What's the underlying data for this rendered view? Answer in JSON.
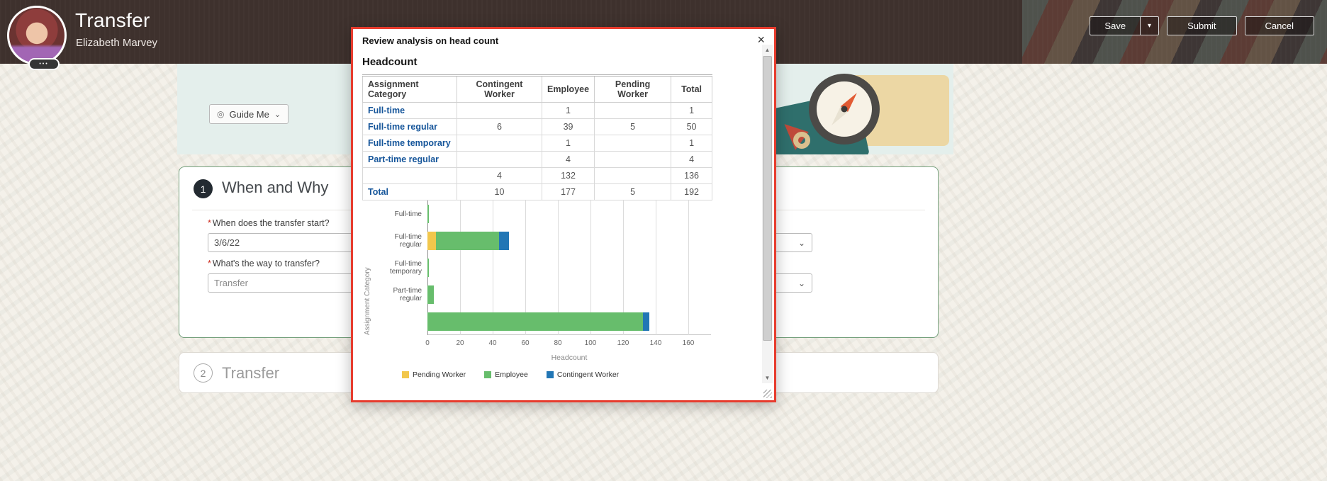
{
  "header": {
    "title": "Transfer",
    "subtitle": "Elizabeth Marvey",
    "actions": {
      "save": "Save",
      "submit": "Submit",
      "cancel": "Cancel"
    }
  },
  "banner": {
    "guide_me_label": "Guide Me"
  },
  "sections": {
    "when_why": {
      "number": "1",
      "title": "When and Why"
    },
    "transfer": {
      "number": "2",
      "title": "Transfer"
    }
  },
  "fields": {
    "required_marker": "*",
    "q1": {
      "label": "When does the transfer start?",
      "value": "3/6/22"
    },
    "q2": {
      "label": "What's the way to transfer?",
      "value": "Transfer"
    }
  },
  "modal": {
    "title": "Review analysis on head count",
    "heading": "Headcount",
    "table": {
      "columns": [
        "Assignment Category",
        "Contingent Worker",
        "Employee",
        "Pending Worker",
        "Total"
      ],
      "rows": [
        {
          "category": "Full-time",
          "style": "link",
          "values": [
            "",
            "1",
            "",
            "1"
          ]
        },
        {
          "category": "Full-time regular",
          "style": "link",
          "values": [
            "6",
            "39",
            "5",
            "50"
          ]
        },
        {
          "category": "Full-time temporary",
          "style": "link",
          "values": [
            "",
            "1",
            "",
            "1"
          ]
        },
        {
          "category": "Part-time regular",
          "style": "link",
          "values": [
            "",
            "4",
            "",
            "4"
          ]
        },
        {
          "category": "",
          "style": "plain",
          "values": [
            "4",
            "132",
            "",
            "136"
          ]
        },
        {
          "category": "Total",
          "style": "total",
          "values": [
            "10",
            "177",
            "5",
            "192"
          ]
        }
      ]
    },
    "chart_data": {
      "type": "bar",
      "orientation": "horizontal",
      "categories": [
        "Full-time",
        "Full-time regular",
        "Full-time temporary",
        "Part-time regular",
        ""
      ],
      "series": [
        {
          "name": "Pending Worker",
          "color": "#f2c74c",
          "values": [
            0,
            5,
            0,
            0,
            0
          ]
        },
        {
          "name": "Employee",
          "color": "#67bd6c",
          "values": [
            1,
            39,
            1,
            4,
            132
          ]
        },
        {
          "name": "Contingent Worker",
          "color": "#2276b5",
          "values": [
            0,
            6,
            0,
            0,
            4
          ]
        }
      ],
      "xlabel": "Headcount",
      "ylabel": "Assignment Category",
      "xlim": [
        0,
        170
      ],
      "xticks": [
        0,
        20,
        40,
        60,
        80,
        100,
        120,
        140,
        160
      ],
      "grid": true,
      "legend_position": "bottom"
    }
  },
  "colors": {
    "modal_border": "#e73c2e",
    "link_blue": "#15559a",
    "card_border_active": "#74a07c",
    "header_bg": "#3e312d",
    "banner_bg": "#e4efec"
  },
  "icons": {
    "close": "×",
    "chevron_down": "⌄",
    "dropdown_arrow": "▾",
    "guide_me_icon": "◎",
    "dots": "•••",
    "arrow_up": "▲",
    "arrow_down": "▼"
  }
}
